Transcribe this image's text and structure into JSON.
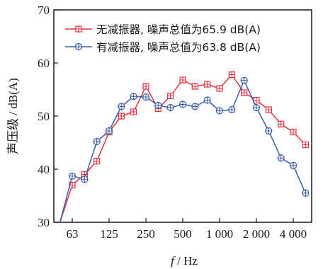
{
  "chart_data": {
    "type": "line",
    "xlabel_f": "f",
    "xlabel_unit": " / Hz",
    "ylabel": "声压级 / dB(A)",
    "ylim": [
      30,
      70
    ],
    "yticks": [
      30,
      40,
      50,
      60,
      70
    ],
    "xticks": [
      "63",
      "125",
      "250",
      "500",
      "1 000",
      "2 000",
      "4 000"
    ],
    "x_ticks_index": [
      1,
      4,
      7,
      10,
      13,
      16,
      19
    ],
    "x_range": [
      -0.5,
      20.5
    ],
    "grid": false,
    "legend_position": "top-right",
    "series": [
      {
        "name": "无减振器, 噪声总值为65.9 dB(A)",
        "color": "#e8313f",
        "marker": "square-plus",
        "values": [
          30.0,
          37.0,
          39.0,
          41.5,
          47.0,
          50.0,
          50.8,
          55.6,
          51.4,
          53.8,
          56.8,
          55.6,
          56.0,
          55.2,
          57.8,
          54.4,
          53.0,
          51.2,
          48.5,
          47.0,
          44.6
        ]
      },
      {
        "name": "有减振器, 噪声总值为63.8 dB(A)",
        "color": "#3b5ca8",
        "marker": "circle-plus",
        "values": [
          30.0,
          38.7,
          38.1,
          45.2,
          47.2,
          51.8,
          53.7,
          53.6,
          52.0,
          51.6,
          52.2,
          51.8,
          53.0,
          51.0,
          51.2,
          56.7,
          51.6,
          47.2,
          42.1,
          40.7,
          35.5
        ]
      }
    ]
  }
}
